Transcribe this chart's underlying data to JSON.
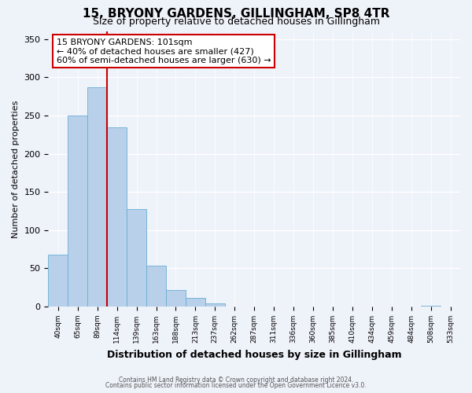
{
  "title": "15, BRYONY GARDENS, GILLINGHAM, SP8 4TR",
  "subtitle": "Size of property relative to detached houses in Gillingham",
  "xlabel": "Distribution of detached houses by size in Gillingham",
  "ylabel": "Number of detached properties",
  "bar_labels": [
    "40sqm",
    "65sqm",
    "89sqm",
    "114sqm",
    "139sqm",
    "163sqm",
    "188sqm",
    "213sqm",
    "237sqm",
    "262sqm",
    "287sqm",
    "311sqm",
    "336sqm",
    "360sqm",
    "385sqm",
    "410sqm",
    "434sqm",
    "459sqm",
    "484sqm",
    "508sqm",
    "533sqm"
  ],
  "bar_values": [
    68,
    250,
    287,
    235,
    128,
    54,
    22,
    11,
    4,
    0,
    0,
    0,
    0,
    0,
    0,
    0,
    0,
    0,
    0,
    1,
    0
  ],
  "bar_color": "#b8d0ea",
  "bar_edge_color": "#6baed6",
  "vline_x": 2.5,
  "vline_color": "#cc0000",
  "annotation_title": "15 BRYONY GARDENS: 101sqm",
  "annotation_line1": "← 40% of detached houses are smaller (427)",
  "annotation_line2": "60% of semi-detached houses are larger (630) →",
  "ylim": [
    0,
    360
  ],
  "yticks": [
    0,
    50,
    100,
    150,
    200,
    250,
    300,
    350
  ],
  "footnote1": "Contains HM Land Registry data © Crown copyright and database right 2024.",
  "footnote2": "Contains public sector information licensed under the Open Government Licence v3.0.",
  "background_color": "#eef2f9",
  "grid_color": "#ffffff",
  "title_fontsize": 11,
  "subtitle_fontsize": 9,
  "annotation_box_facecolor": "#ffffff",
  "annotation_box_edgecolor": "#cc0000",
  "annotation_fontsize": 8
}
